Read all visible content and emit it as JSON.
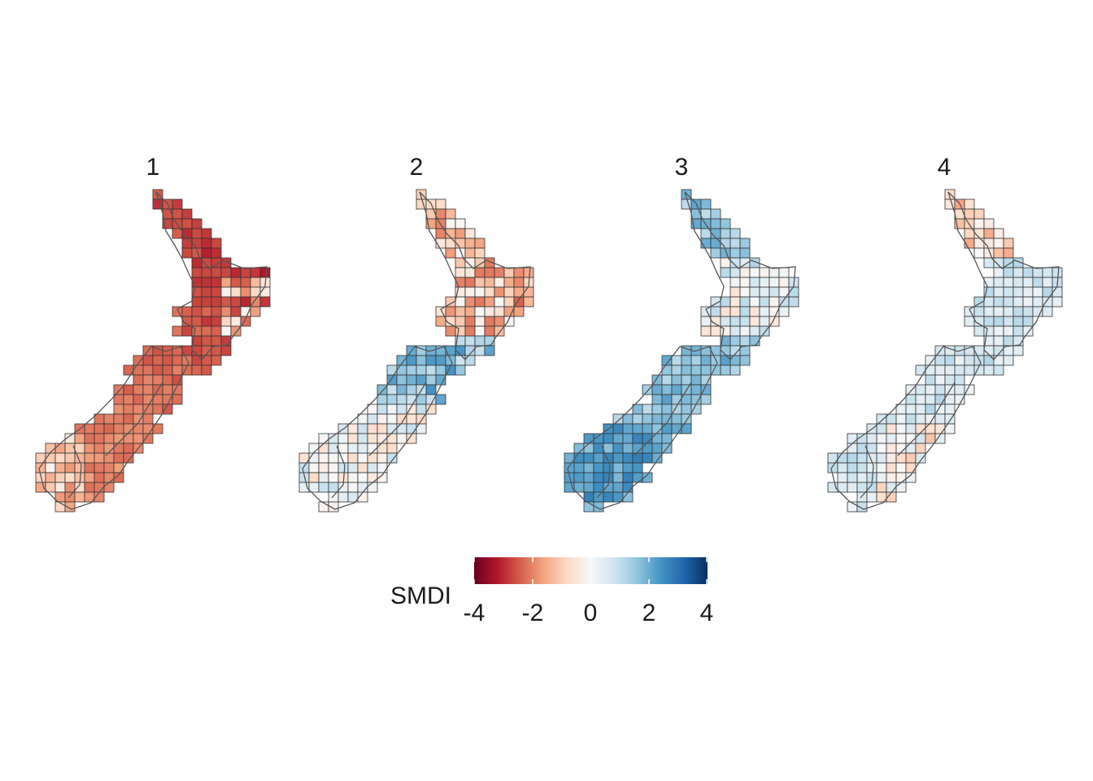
{
  "panels": [
    {
      "title": "1"
    },
    {
      "title": "2"
    },
    {
      "title": "3"
    },
    {
      "title": "4"
    }
  ],
  "legend": {
    "title": "SMDI",
    "breaks": [
      "-4",
      "-2",
      "0",
      "2",
      "4"
    ],
    "limits": [
      -4,
      4
    ]
  },
  "colors": {
    "palette": [
      "#67001f",
      "#b2182b",
      "#d6604d",
      "#f4a582",
      "#fddbc7",
      "#f7f7f7",
      "#d1e5f0",
      "#92c5de",
      "#4393c3",
      "#2166ac",
      "#053061"
    ],
    "cell_border": "#333333",
    "coastline": "#555555"
  }
}
